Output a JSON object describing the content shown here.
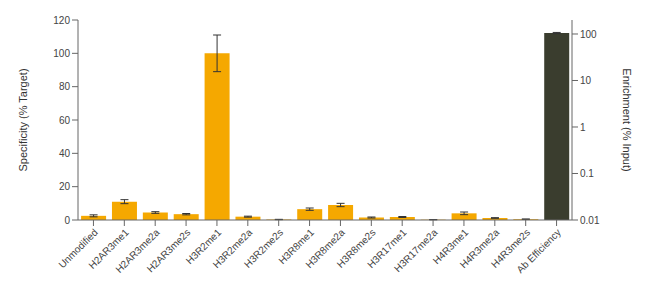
{
  "chart_data": {
    "type": "bar",
    "categories": [
      "Unmodified",
      "H2AR3me1",
      "H2AR3me2a",
      "H2AR3me2s",
      "H3R2me1",
      "H3R2me2a",
      "H3R2me2s",
      "H3R8me1",
      "H3R8me2a",
      "H3R8me2s",
      "H3R17me1",
      "H3R17me2a",
      "H4R3me1",
      "H4R3me2a",
      "H4R3me2s",
      "Ab Efficiency"
    ],
    "series": [
      {
        "color": "#F5A800",
        "values": [
          2.5,
          11.0,
          4.5,
          3.5,
          100.0,
          2.0,
          0.3,
          6.5,
          9.0,
          1.5,
          1.8,
          0.2,
          4.0,
          1.2,
          0.5,
          null
        ],
        "errors": [
          0.6,
          1.2,
          0.5,
          0.4,
          11.0,
          0.3,
          0.1,
          0.7,
          1.0,
          0.3,
          0.3,
          0.1,
          0.8,
          0.2,
          0.1,
          null
        ]
      },
      {
        "color": "#3A3D2E",
        "axis": "y2",
        "values": [
          null,
          null,
          null,
          null,
          null,
          null,
          null,
          null,
          null,
          null,
          null,
          null,
          null,
          null,
          null,
          105.0
        ],
        "errors": [
          null,
          null,
          null,
          null,
          null,
          null,
          null,
          null,
          null,
          null,
          null,
          null,
          null,
          null,
          null,
          3.0
        ]
      }
    ],
    "ylabel": "Specificity (% Target)",
    "y2label": "Enrichment (% Input)",
    "ylim": [
      0,
      120
    ],
    "yticks": [
      0,
      20,
      40,
      60,
      80,
      100,
      120
    ],
    "y2lim": [
      0.01,
      200
    ],
    "y2ticks": [
      0.01,
      0.1,
      1,
      10,
      100
    ],
    "log": "y2"
  }
}
